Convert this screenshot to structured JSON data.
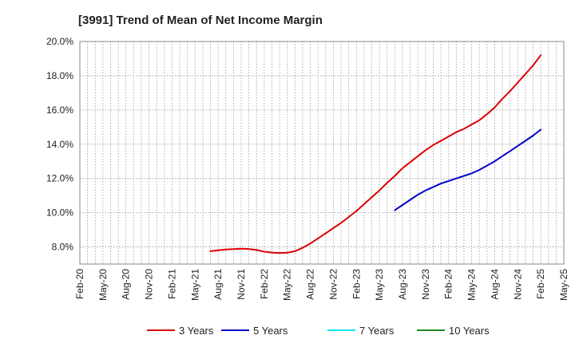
{
  "chart_data": {
    "type": "line",
    "title": "[3991]  Trend of Mean of Net Income Margin",
    "xlabel": "",
    "ylabel": "",
    "x_ticks": [
      "Feb-20",
      "May-20",
      "Aug-20",
      "Nov-20",
      "Feb-21",
      "May-21",
      "Aug-21",
      "Nov-21",
      "Feb-22",
      "May-22",
      "Aug-22",
      "Nov-22",
      "Feb-23",
      "May-23",
      "Aug-23",
      "Nov-23",
      "Feb-24",
      "May-24",
      "Aug-24",
      "Nov-24",
      "Feb-25",
      "May-25"
    ],
    "y_ticks": [
      "8.0%",
      "10.0%",
      "12.0%",
      "14.0%",
      "16.0%",
      "18.0%",
      "20.0%"
    ],
    "ylim": [
      7.0,
      20.0
    ],
    "y_tick_values": [
      8,
      10,
      12,
      14,
      16,
      18,
      20
    ],
    "grid": true,
    "legend_position": "bottom",
    "series": [
      {
        "name": "3 Years",
        "color": "#dd0000",
        "x": [
          "Jul-21",
          "Aug-21",
          "Sep-21",
          "Oct-21",
          "Nov-21",
          "Dec-21",
          "Jan-22",
          "Feb-22",
          "Mar-22",
          "Apr-22",
          "May-22",
          "Jun-22",
          "Jul-22",
          "Aug-22",
          "Sep-22",
          "Oct-22",
          "Nov-22",
          "Dec-22",
          "Jan-23",
          "Feb-23",
          "Mar-23",
          "Apr-23",
          "May-23",
          "Jun-23",
          "Jul-23",
          "Aug-23",
          "Sep-23",
          "Oct-23",
          "Nov-23",
          "Dec-23",
          "Jan-24",
          "Feb-24",
          "Mar-24",
          "Apr-24",
          "May-24",
          "Jun-24",
          "Jul-24",
          "Aug-24",
          "Sep-24",
          "Oct-24",
          "Nov-24",
          "Dec-24",
          "Jan-25",
          "Feb-25"
        ],
        "values": [
          7.75,
          7.8,
          7.85,
          7.87,
          7.9,
          7.88,
          7.82,
          7.72,
          7.67,
          7.65,
          7.66,
          7.75,
          7.95,
          8.2,
          8.5,
          8.8,
          9.1,
          9.4,
          9.75,
          10.1,
          10.5,
          10.9,
          11.3,
          11.75,
          12.15,
          12.6,
          12.95,
          13.3,
          13.65,
          13.95,
          14.2,
          14.45,
          14.7,
          14.9,
          15.15,
          15.4,
          15.75,
          16.15,
          16.65,
          17.1,
          17.6,
          18.1,
          18.6,
          19.2
        ]
      },
      {
        "name": "5 Years",
        "color": "#0000cc",
        "x": [
          "Jul-23",
          "Aug-23",
          "Sep-23",
          "Oct-23",
          "Nov-23",
          "Dec-23",
          "Jan-24",
          "Feb-24",
          "Mar-24",
          "Apr-24",
          "May-24",
          "Jun-24",
          "Jul-24",
          "Aug-24",
          "Sep-24",
          "Oct-24",
          "Nov-24",
          "Dec-24",
          "Jan-25",
          "Feb-25"
        ],
        "values": [
          10.15,
          10.45,
          10.75,
          11.05,
          11.3,
          11.5,
          11.7,
          11.85,
          12.0,
          12.15,
          12.3,
          12.5,
          12.75,
          13.0,
          13.3,
          13.6,
          13.9,
          14.2,
          14.5,
          14.85
        ]
      },
      {
        "name": "7 Years",
        "color": "#00e5ee",
        "x": [],
        "values": []
      },
      {
        "name": "10 Years",
        "color": "#228b22",
        "x": [],
        "values": []
      }
    ]
  }
}
